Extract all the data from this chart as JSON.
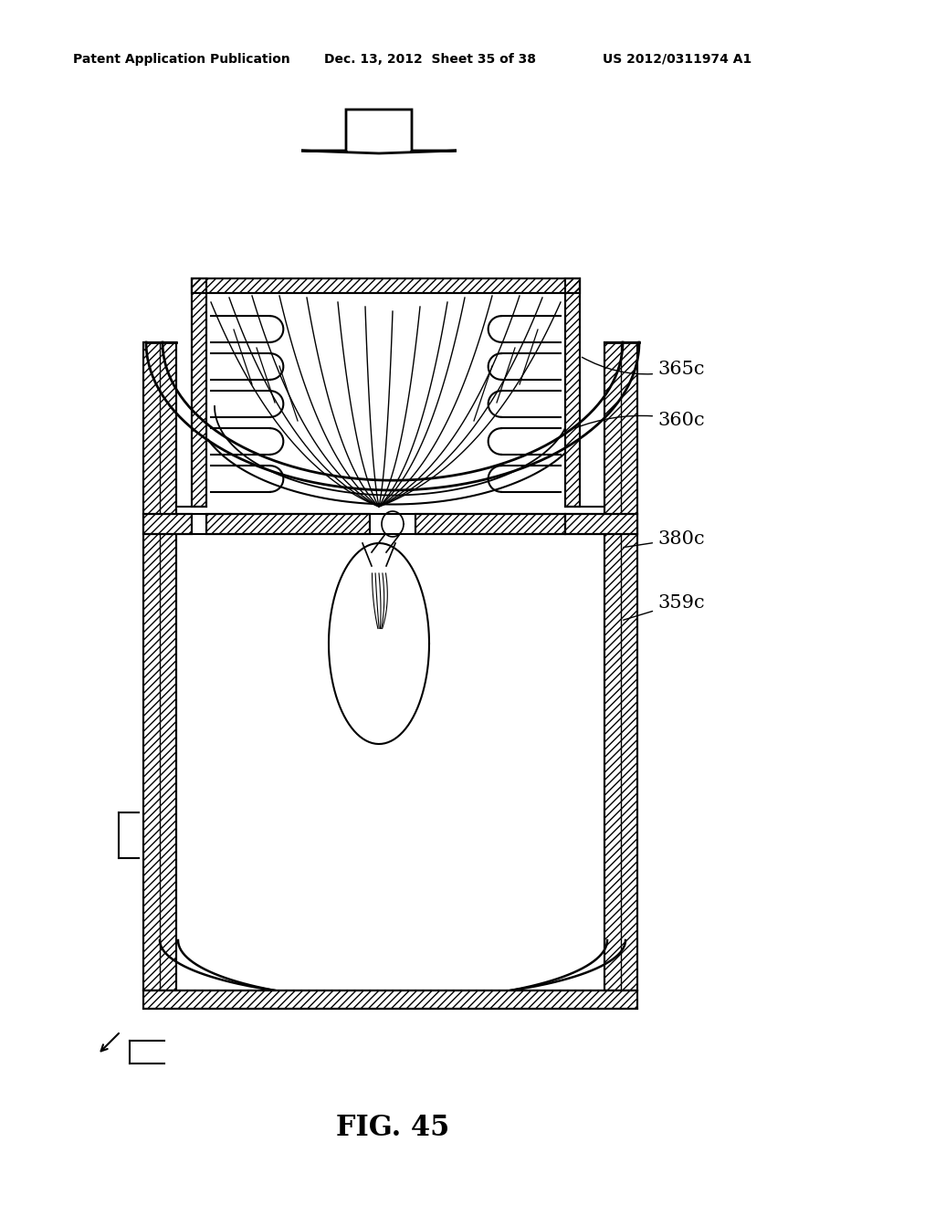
{
  "title": "FIG. 45",
  "header_left": "Patent Application Publication",
  "header_center": "Dec. 13, 2012  Sheet 35 of 38",
  "header_right": "US 2012/0311974 A1",
  "bg_color": "#ffffff",
  "line_color": "#000000"
}
